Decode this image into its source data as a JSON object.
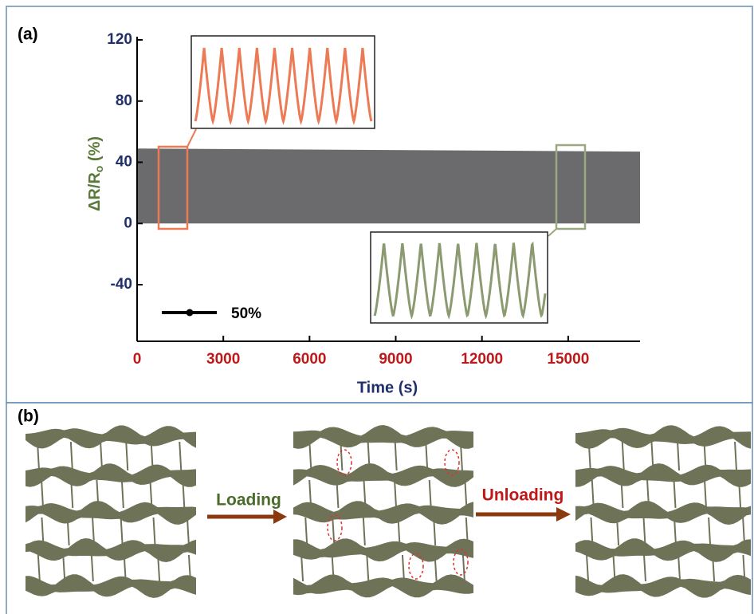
{
  "chart_data": {
    "type": "area",
    "panel_label": "(a)",
    "x_label": "Time (s)",
    "y_label": [
      "ΔR/R",
      "o",
      " (%)"
    ],
    "x": [
      0,
      17500
    ],
    "series": [
      {
        "color": "#6b6b6d",
        "values": [
          49,
          47
        ]
      }
    ],
    "xlim": [
      0,
      17500
    ],
    "ylim": [
      -77,
      120
    ],
    "xticks": [
      0,
      3000,
      6000,
      9000,
      12000,
      15000
    ],
    "yticks": [
      -40,
      0,
      40,
      80,
      120
    ],
    "scale_bar_label": "50%"
  },
  "diagram": {
    "panel_label": "(b)",
    "steps": [
      {
        "label": "Loading"
      },
      {
        "label": "Unloading"
      }
    ]
  }
}
